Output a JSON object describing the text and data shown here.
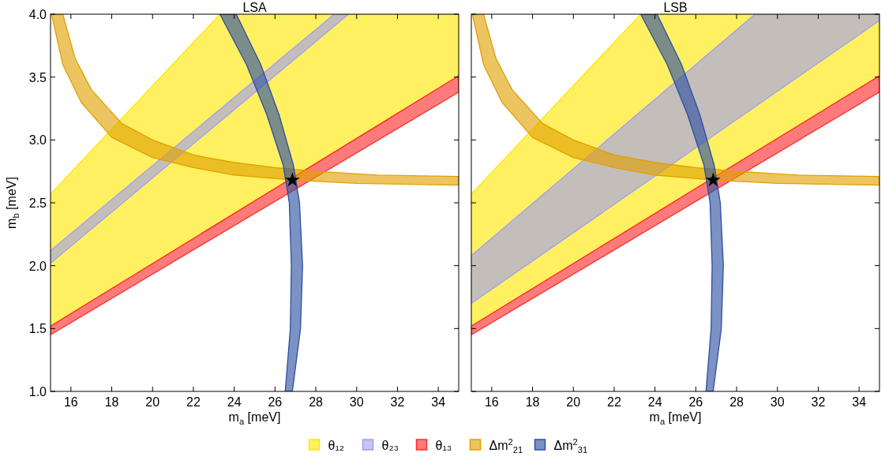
{
  "chart_data": [
    {
      "type": "area",
      "title": "LSA",
      "xlabel": "m$_{a}$ [meV]",
      "ylabel": "m$_{b}$ [meV]",
      "xlim": [
        15,
        35
      ],
      "ylim": [
        1,
        4
      ],
      "xticks": [
        16,
        18,
        20,
        22,
        24,
        26,
        28,
        30,
        32,
        34
      ],
      "yticks": [
        {
          "value": 1,
          "label": "1.0"
        },
        1.5,
        {
          "value": 2,
          "label": "2.0"
        },
        2.5,
        {
          "value": 3,
          "label": "3.0"
        },
        3.5,
        {
          "value": 4,
          "label": "4.0"
        }
      ],
      "grid": false,
      "legend": "bottom",
      "series": [
        {
          "name": "θ₁₂",
          "color": "#ffe600",
          "x": [
            15,
            35,
            35,
            23.3,
            15
          ],
          "values": [
            1.52,
            3.51,
            4,
            4,
            2.57
          ]
        },
        {
          "name": "θ₂₃",
          "color": "#9f9ff0",
          "x": [
            15,
            29.6,
            28.9,
            15
          ],
          "values": [
            2.02,
            4,
            4,
            2.12
          ]
        },
        {
          "name": "θ₁₃",
          "color": "#ff2a2a",
          "x": [
            15,
            35,
            35,
            15
          ],
          "values": [
            1.45,
            3.38,
            3.51,
            1.52
          ]
        },
        {
          "name": "Δm$^{2}$$_{21}$",
          "color": "#e0a000",
          "x": [
            15.05,
            15.6,
            16.5,
            18,
            20,
            22,
            24,
            27,
            30,
            35,
            35,
            31,
            28,
            26,
            24,
            22,
            20,
            18.5,
            17,
            16.2,
            15.6
          ],
          "values": [
            4,
            3.6,
            3.3,
            3.02,
            2.86,
            2.78,
            2.72,
            2.68,
            2.655,
            2.64,
            2.71,
            2.72,
            2.75,
            2.78,
            2.82,
            2.88,
            3.0,
            3.13,
            3.4,
            3.65,
            4
          ]
        },
        {
          "name": "Δm$^{2}$$_{31}$",
          "color": "#2c4fa0",
          "x": [
            23.3,
            24.6,
            25.6,
            26.4,
            26.7,
            26.8,
            26.75,
            26.5,
            26.85,
            27.25,
            27.35,
            27.2,
            26.9,
            26.2,
            25.3,
            24.1
          ],
          "values": [
            4,
            3.6,
            3.2,
            2.8,
            2.5,
            2.0,
            1.5,
            1,
            1,
            1.5,
            2.0,
            2.5,
            2.8,
            3.2,
            3.6,
            4
          ]
        },
        {
          "type": "scatter",
          "marker": "star",
          "color": "#000000",
          "x": [
            26.85
          ],
          "values": [
            2.68
          ]
        }
      ]
    },
    {
      "type": "area",
      "title": "LSB",
      "xlabel": "m$_{a}$ [meV]",
      "xlim": [
        15,
        35
      ],
      "ylim": [
        1,
        4
      ],
      "xticks": [
        16,
        18,
        20,
        22,
        24,
        26,
        28,
        30,
        32,
        34
      ],
      "yticks": [
        {
          "value": 1,
          "label": null
        },
        {
          "value": 1.5,
          "label": null
        },
        {
          "value": 2,
          "label": null
        },
        {
          "value": 2.5,
          "label": null
        },
        {
          "value": 3,
          "label": null
        },
        {
          "value": 3.5,
          "label": null
        },
        {
          "value": 4,
          "label": null
        }
      ],
      "tick_labels": "x",
      "grid": false,
      "series": [
        {
          "color": "#ffe600",
          "x": [
            15,
            35,
            35,
            23.3,
            15
          ],
          "values": [
            1.52,
            3.51,
            4,
            4,
            2.57
          ]
        },
        {
          "color": "#9f9ff0",
          "x": [
            15,
            35,
            35,
            28.9,
            15
          ],
          "values": [
            1.7,
            3.95,
            4,
            4,
            2.08
          ]
        },
        {
          "color": "#ff2a2a",
          "x": [
            15,
            35,
            35,
            15
          ],
          "values": [
            1.45,
            3.38,
            3.51,
            1.52
          ]
        },
        {
          "color": "#e0a000",
          "x": [
            15.05,
            15.6,
            16.5,
            18,
            20,
            22,
            24,
            27,
            30,
            35,
            35,
            31,
            28,
            26,
            24,
            22,
            20,
            18.5,
            17,
            16.2,
            15.6
          ],
          "values": [
            4,
            3.6,
            3.3,
            3.02,
            2.86,
            2.78,
            2.72,
            2.68,
            2.655,
            2.64,
            2.71,
            2.72,
            2.75,
            2.78,
            2.82,
            2.88,
            3.0,
            3.13,
            3.4,
            3.65,
            4
          ]
        },
        {
          "color": "#2c4fa0",
          "x": [
            23.3,
            24.6,
            25.6,
            26.4,
            26.7,
            26.8,
            26.75,
            26.5,
            26.85,
            27.25,
            27.35,
            27.2,
            26.9,
            26.2,
            25.3,
            24.1
          ],
          "values": [
            4,
            3.6,
            3.2,
            2.8,
            2.5,
            2.0,
            1.5,
            1,
            1,
            1.5,
            2.0,
            2.5,
            2.8,
            3.2,
            3.6,
            4
          ]
        },
        {
          "type": "scatter",
          "marker": "star",
          "color": "#000000",
          "x": [
            26.85
          ],
          "values": [
            2.68
          ]
        }
      ]
    }
  ]
}
